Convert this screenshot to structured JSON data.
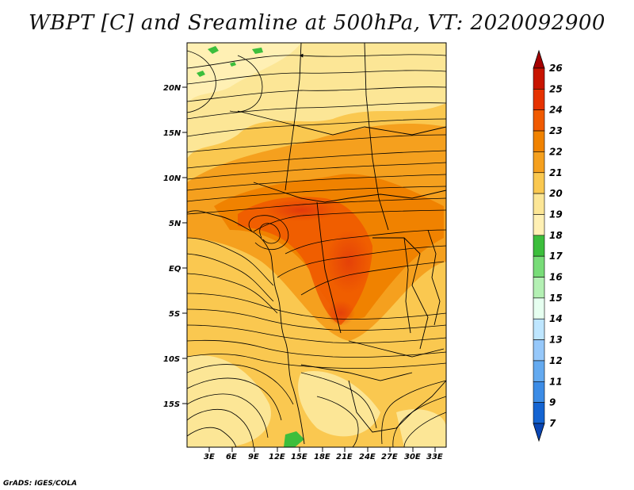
{
  "title": "WBPT [C] and Sreamline at 500hPa, VT: 2020092900",
  "footer": "GrADS: IGES/COLA",
  "map": {
    "lat_labels": [
      "20N",
      "15N",
      "10N",
      "5N",
      "EQ",
      "5S",
      "10S",
      "15S"
    ],
    "lon_labels": [
      "3E",
      "6E",
      "9E",
      "12E",
      "15E",
      "18E",
      "21E",
      "24E",
      "27E",
      "30E",
      "33E"
    ]
  },
  "colorbar": {
    "labels": [
      "26",
      "25",
      "24",
      "23",
      "22",
      "21",
      "20",
      "19",
      "18",
      "17",
      "16",
      "15",
      "14",
      "13",
      "12",
      "11",
      "9",
      "7"
    ],
    "colors": [
      "#a50000",
      "#c81400",
      "#e63200",
      "#f05a00",
      "#f08200",
      "#f5a01e",
      "#fac850",
      "#fce696",
      "#fff0b4",
      "#3cbe3c",
      "#78dc78",
      "#b4f0b4",
      "#e6fff0",
      "#bee6ff",
      "#96c8fa",
      "#64aaf0",
      "#3c8ce6",
      "#1464d2",
      "#0a46b4"
    ]
  }
}
